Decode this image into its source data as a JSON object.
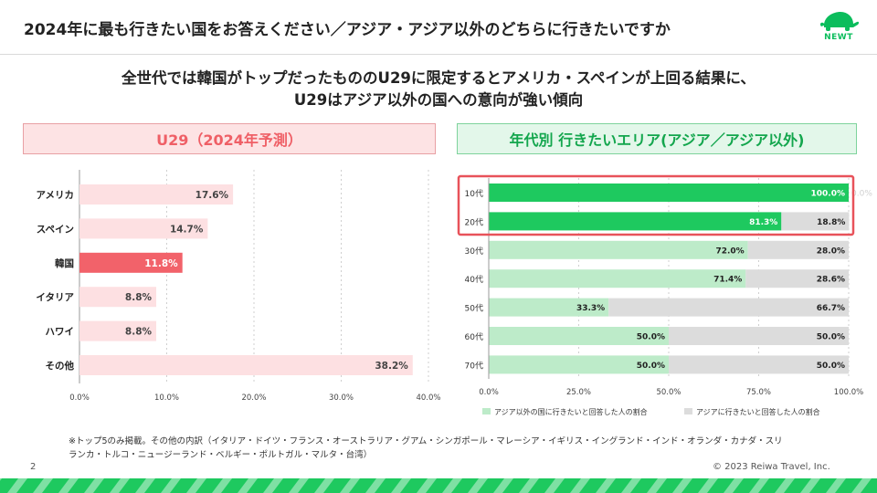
{
  "header": {
    "title": "2024年に最も行きたい国をお答えください／アジア・アジア以外のどちらに行きたいですか",
    "logo_text": "NEWT"
  },
  "headline": {
    "line1": "全世代では韓国がトップだったもののU29に限定するとアメリカ・スペインが上回る結果に、",
    "line2": "U29はアジア以外の国への意向が強い傾向"
  },
  "panels": {
    "left_title": "U29（2024年予測）",
    "right_title": "年代別 行きたいエリア(アジア／アジア以外)"
  },
  "colors": {
    "bar_light_pink": "#fde0e2",
    "bar_highlight": "#f2626a",
    "green_dark": "#1ec95f",
    "green_light": "#bdebc9",
    "gray": "#dcdcdc",
    "highlight_box": "#e8525a"
  },
  "chart_data": [
    {
      "type": "bar",
      "orientation": "horizontal",
      "title": "U29（2024年予測）",
      "categories": [
        "アメリカ",
        "スペイン",
        "韓国",
        "イタリア",
        "ハワイ",
        "その他"
      ],
      "values": [
        17.6,
        14.7,
        11.8,
        8.8,
        8.8,
        38.2
      ],
      "value_labels": [
        "17.6%",
        "14.7%",
        "11.8%",
        "8.8%",
        "8.8%",
        "38.2%"
      ],
      "highlight": "韓国",
      "xlim": [
        0,
        40
      ],
      "xticks": [
        "0.0%",
        "10.0%",
        "20.0%",
        "30.0%",
        "40.0%"
      ],
      "grid": true
    },
    {
      "type": "bar",
      "orientation": "horizontal",
      "stacked": true,
      "title": "年代別 行きたいエリア(アジア／アジア以外)",
      "categories": [
        "10代",
        "20代",
        "30代",
        "40代",
        "50代",
        "60代",
        "70代"
      ],
      "series": [
        {
          "name": "アジア以外の国に行きたいと回答した人の割合",
          "values": [
            100.0,
            81.3,
            72.0,
            71.4,
            33.3,
            50.0,
            50.0
          ],
          "labels": [
            "100.0%",
            "81.3%",
            "72.0%",
            "71.4%",
            "33.3%",
            "50.0%",
            "50.0%"
          ]
        },
        {
          "name": "アジアに行きたいと回答した人の割合",
          "values": [
            0.0,
            18.8,
            28.0,
            28.6,
            66.7,
            50.0,
            50.0
          ],
          "labels": [
            "0.0%",
            "18.8%",
            "28.0%",
            "28.6%",
            "66.7%",
            "50.0%",
            "50.0%"
          ]
        }
      ],
      "xlim": [
        0,
        100
      ],
      "xticks": [
        "0.0%",
        "25.0%",
        "50.0%",
        "75.0%",
        "100.0%"
      ],
      "highlighted_categories": [
        "10代",
        "20代"
      ],
      "legend_position": "bottom"
    }
  ],
  "footnote": {
    "line1": "※トップ5のみ掲載。その他の内訳（イタリア・ドイツ・フランス・オーストラリア・グアム・シンガポール・マレーシア・イギリス・イングランド・インド・オランダ・カナダ・スリ",
    "line2": "ランカ・トルコ・ニュージーランド・ベルギー・ポルトガル・マルタ・台湾）"
  },
  "page_number": "2",
  "copyright": "© 2023 Reiwa Travel, Inc."
}
